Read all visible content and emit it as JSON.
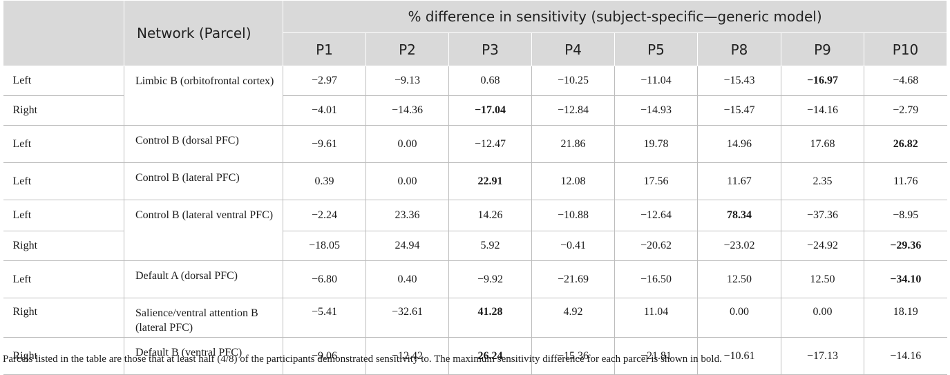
{
  "header": {
    "network_label": "Network (Parcel)",
    "span_label": "% difference in sensitivity (subject-specific—generic model)",
    "participants": [
      "P1",
      "P2",
      "P3",
      "P4",
      "P5",
      "P8",
      "P9",
      "P10"
    ]
  },
  "rows": [
    {
      "side": "Left",
      "parcel": "Limbic B (orbitofrontal cortex)",
      "values": [
        "−2.97",
        "−9.13",
        "0.68",
        "−10.25",
        "−11.04",
        "−15.43",
        "−16.97",
        "−4.68"
      ],
      "bold_index": 6
    },
    {
      "side": "Right",
      "parcel": "",
      "values": [
        "−4.01",
        "−14.36",
        "−17.04",
        "−12.84",
        "−14.93",
        "−15.47",
        "−14.16",
        "−2.79"
      ],
      "bold_index": 2
    },
    {
      "side": "Left",
      "parcel": "Control B (dorsal PFC)",
      "values": [
        "−9.61",
        "0.00",
        "−12.47",
        "21.86",
        "19.78",
        "14.96",
        "17.68",
        "26.82"
      ],
      "bold_index": 7
    },
    {
      "side": "Left",
      "parcel": "Control B (lateral PFC)",
      "values": [
        "0.39",
        "0.00",
        "22.91",
        "12.08",
        "17.56",
        "11.67",
        "2.35",
        "11.76"
      ],
      "bold_index": 2
    },
    {
      "side": "Left",
      "parcel": "Control B (lateral ventral PFC)",
      "values": [
        "−2.24",
        "23.36",
        "14.26",
        "−10.88",
        "−12.64",
        "78.34",
        "−37.36",
        "−8.95"
      ],
      "bold_index": 5
    },
    {
      "side": "Right",
      "parcel": "",
      "values": [
        "−18.05",
        "24.94",
        "5.92",
        "−0.41",
        "−20.62",
        "−23.02",
        "−24.92",
        "−29.36"
      ],
      "bold_index": 7
    },
    {
      "side": "Left",
      "parcel": "Default A (dorsal PFC)",
      "values": [
        "−6.80",
        "0.40",
        "−9.92",
        "−21.69",
        "−16.50",
        "12.50",
        "12.50",
        "−34.10"
      ],
      "bold_index": 7
    },
    {
      "side": "Right",
      "parcel": "Salience/ventral attention B (lateral PFC)",
      "values": [
        "−5.41",
        "−32.61",
        "41.28",
        "4.92",
        "11.04",
        "0.00",
        "0.00",
        "18.19"
      ],
      "bold_index": 2
    },
    {
      "side": "Right",
      "parcel": "Default B (ventral PFC)",
      "values": [
        "−9.06",
        "−12.42",
        "26.24",
        "−15.36",
        "−21.81",
        "−10.61",
        "−17.13",
        "−14.16"
      ],
      "bold_index": 2
    }
  ],
  "footnote": "Parcels listed in the table are those that at least half (4/8) of the participants demonstrated sensitivity to. The maximum sensitivity difference for each parcel is shown in bold."
}
